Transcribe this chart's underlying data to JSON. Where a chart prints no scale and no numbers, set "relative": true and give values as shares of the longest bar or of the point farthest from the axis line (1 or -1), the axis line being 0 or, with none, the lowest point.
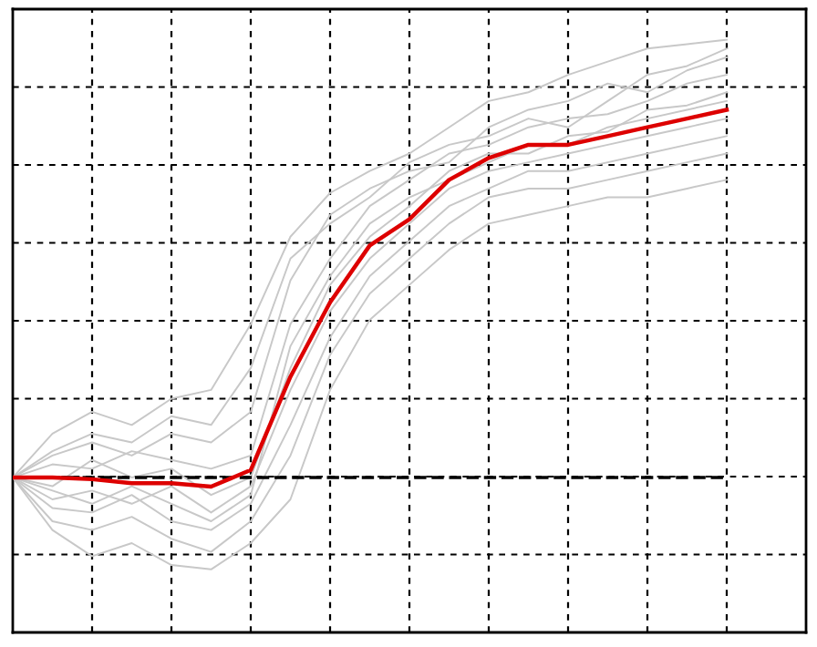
{
  "chart_data": {
    "type": "line",
    "relative": true,
    "grid": true,
    "tick_labels": false,
    "line_style": "solid",
    "marker": "none",
    "categories": [
      null,
      null,
      null,
      null,
      null,
      null,
      null,
      null,
      null,
      null,
      null,
      null,
      null,
      null,
      null,
      null,
      null,
      null,
      null
    ],
    "series": [
      {
        "color": "#c8c8c8",
        "values": [
          0,
          0.1,
          0.15,
          0.12,
          0.18,
          0.2,
          0.35,
          0.55,
          0.65,
          0.7,
          0.74,
          0.8,
          0.86,
          0.88,
          0.92,
          0.95,
          0.98,
          0.99,
          1.0
        ]
      },
      {
        "color": "#c8c8c8",
        "values": [
          0,
          0.05,
          0.08,
          0.05,
          0.1,
          0.08,
          0.15,
          0.45,
          0.6,
          0.66,
          0.7,
          0.72,
          0.8,
          0.84,
          0.86,
          0.9,
          0.88,
          0.93,
          0.96
        ]
      },
      {
        "color": "#c8c8c8",
        "values": [
          0,
          0.03,
          0.02,
          0.06,
          0.04,
          0.02,
          0.05,
          0.35,
          0.5,
          0.62,
          0.68,
          0.74,
          0.76,
          0.8,
          0.82,
          0.83,
          0.86,
          0.9,
          0.92
        ]
      },
      {
        "color": "#c8c8c8",
        "values": [
          0,
          -0.02,
          0.04,
          0.0,
          0.02,
          -0.04,
          0.0,
          0.25,
          0.44,
          0.55,
          0.62,
          0.7,
          0.74,
          0.74,
          0.78,
          0.79,
          0.84,
          0.85,
          0.88
        ]
      },
      {
        "color": "#c8c8c8",
        "values": [
          0,
          -0.05,
          -0.03,
          -0.06,
          -0.02,
          -0.08,
          -0.02,
          0.2,
          0.38,
          0.5,
          0.58,
          0.66,
          0.7,
          0.72,
          0.74,
          0.76,
          0.78,
          0.8,
          0.82
        ]
      },
      {
        "color": "#c8c8c8",
        "values": [
          0,
          -0.07,
          -0.08,
          -0.04,
          -0.1,
          -0.12,
          -0.06,
          0.12,
          0.32,
          0.46,
          0.54,
          0.62,
          0.66,
          0.7,
          0.7,
          0.72,
          0.74,
          0.76,
          0.78
        ]
      },
      {
        "color": "#c8c8c8",
        "values": [
          0,
          -0.1,
          -0.12,
          -0.09,
          -0.14,
          -0.17,
          -0.1,
          0.05,
          0.28,
          0.42,
          0.5,
          0.58,
          0.64,
          0.66,
          0.66,
          0.68,
          0.7,
          0.72,
          0.74
        ]
      },
      {
        "color": "#c8c8c8",
        "values": [
          0,
          -0.12,
          -0.18,
          -0.15,
          -0.2,
          -0.21,
          -0.15,
          -0.05,
          0.2,
          0.36,
          0.44,
          0.52,
          0.58,
          0.6,
          0.62,
          0.64,
          0.64,
          0.66,
          0.68
        ]
      },
      {
        "color": "#c8c8c8",
        "values": [
          0,
          0.06,
          0.1,
          0.08,
          0.14,
          0.12,
          0.25,
          0.5,
          0.58,
          0.64,
          0.72,
          0.76,
          0.78,
          0.82,
          0.8,
          0.86,
          0.92,
          0.94,
          0.98
        ]
      },
      {
        "color": "#c8c8c8",
        "values": [
          0,
          -0.03,
          -0.06,
          -0.02,
          -0.06,
          -0.1,
          -0.04,
          0.3,
          0.46,
          0.58,
          0.64,
          0.68,
          0.72,
          0.76,
          0.76,
          0.8,
          0.82,
          0.84,
          0.86
        ]
      },
      {
        "color": "#dd0000",
        "values": [
          0,
          0,
          -0.004,
          -0.013,
          -0.013,
          -0.021,
          0.017,
          0.23,
          0.4,
          0.53,
          0.59,
          0.68,
          0.73,
          0.76,
          0.76,
          0.78,
          0.8,
          0.82,
          0.84
        ]
      }
    ],
    "ref_lines": [
      {
        "axis": "y",
        "value": 0,
        "color": "#000000",
        "line_style": "dashed"
      }
    ]
  }
}
